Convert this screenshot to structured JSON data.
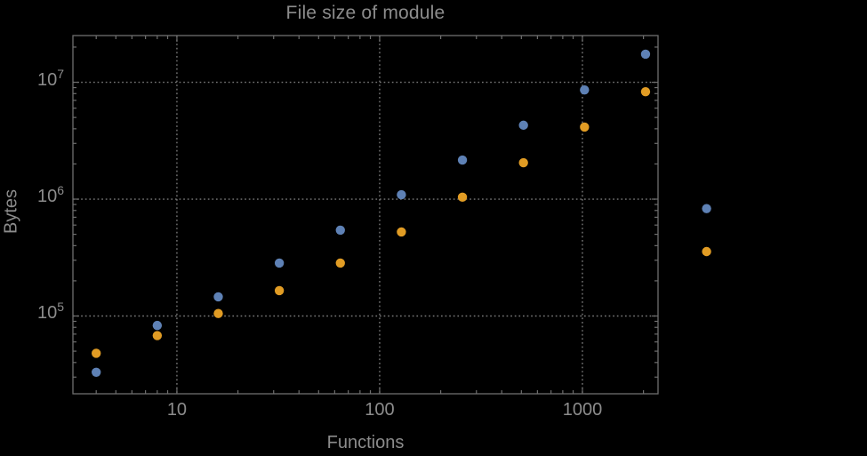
{
  "chart_data": {
    "type": "scatter",
    "title": "File size of module",
    "xlabel": "Functions",
    "ylabel": "Bytes",
    "x_scale": "log",
    "y_scale": "log",
    "xlim": [
      3.07,
      2360
    ],
    "ylim": [
      21600,
      25100000
    ],
    "grid": "dotted-gray-at-decades",
    "legend": "none",
    "clip_points": false,
    "x": [
      4,
      8,
      16,
      32,
      64,
      128,
      256,
      512,
      1024,
      2048,
      4096
    ],
    "series": [
      {
        "name": "blue",
        "color": "#5E81B5",
        "values": [
          33000,
          83000,
          146000,
          284000,
          543000,
          1090000,
          2160000,
          4290000,
          8600000,
          17400000,
          830000
        ]
      },
      {
        "name": "orange",
        "color": "#E19C24",
        "values": [
          48000,
          68000,
          105000,
          165000,
          284000,
          524000,
          1040000,
          2050000,
          4140000,
          8300000,
          356000
        ]
      }
    ],
    "x_tick_labels": [
      {
        "value": 10,
        "label": "10"
      },
      {
        "value": 100,
        "label": "100"
      },
      {
        "value": 1000,
        "label": "1000"
      }
    ],
    "y_tick_labels": [
      {
        "value": 100000,
        "base": "10",
        "exp": "5"
      },
      {
        "value": 1000000,
        "base": "10",
        "exp": "6"
      },
      {
        "value": 10000000,
        "base": "10",
        "exp": "7"
      }
    ],
    "x_gridlines": [
      10,
      100,
      1000
    ],
    "y_gridlines": [
      100000,
      1000000,
      10000000
    ]
  },
  "colors": {
    "background": "#000000",
    "frame": "#6e6e6e",
    "grid": "#787878",
    "tick": "#6e6e6e",
    "text": "#8c8c8c"
  }
}
